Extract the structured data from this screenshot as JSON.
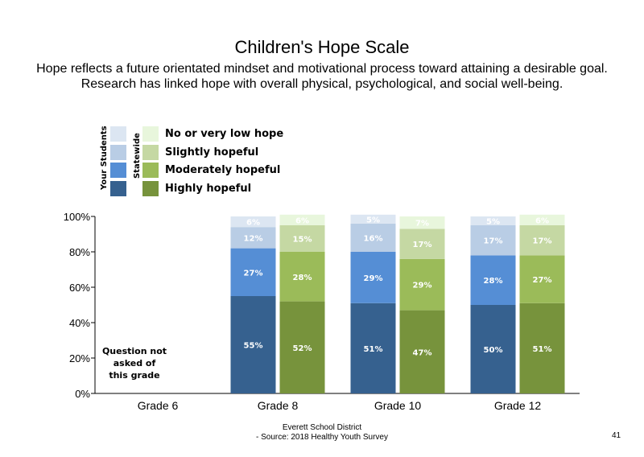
{
  "title": "Children's Hope Scale",
  "subtitle_line1": "Hope reflects a future orientated mindset and motivational  process toward attaining a desirable goal.",
  "subtitle_line2": "Research has linked hope with overall physical, psychological, and social well-being.",
  "legend": {
    "group_your": "Your Students",
    "group_state": "Statewide",
    "items": [
      {
        "label": "No or very low hope",
        "your_color": "#dce6f2",
        "state_color": "#e8f6dc"
      },
      {
        "label": "Slightly hopeful",
        "your_color": "#b9cde5",
        "state_color": "#c5d8a3"
      },
      {
        "label": "Moderately hopeful",
        "your_color": "#558ed5",
        "state_color": "#9bbb59"
      },
      {
        "label": "Highly hopeful",
        "your_color": "#36618f",
        "state_color": "#77933c"
      }
    ]
  },
  "chart_data": {
    "type": "bar",
    "stacked": true,
    "categories": [
      "Grade 6",
      "Grade 8",
      "Grade 10",
      "Grade 12"
    ],
    "ylim": [
      0,
      100
    ],
    "yticks": [
      "0%",
      "20%",
      "40%",
      "60%",
      "80%",
      "100%"
    ],
    "not_asked_note": [
      "Question not",
      "asked of",
      "this grade"
    ],
    "series_order": [
      "Highly hopeful",
      "Moderately hopeful",
      "Slightly hopeful",
      "No or very low hope"
    ],
    "groups": [
      {
        "category": "Grade 6",
        "your": null,
        "state": null
      },
      {
        "category": "Grade 8",
        "your": [
          55,
          27,
          12,
          6
        ],
        "state": [
          52,
          28,
          15,
          6
        ]
      },
      {
        "category": "Grade 10",
        "your": [
          51,
          29,
          16,
          5
        ],
        "state": [
          47,
          29,
          17,
          7
        ]
      },
      {
        "category": "Grade 12",
        "your": [
          50,
          28,
          17,
          5
        ],
        "state": [
          51,
          27,
          17,
          6
        ]
      }
    ]
  },
  "footer_line1": "Everett School District",
  "footer_line2": "- Source: 2018 Healthy  Youth Survey",
  "page_number": "41"
}
